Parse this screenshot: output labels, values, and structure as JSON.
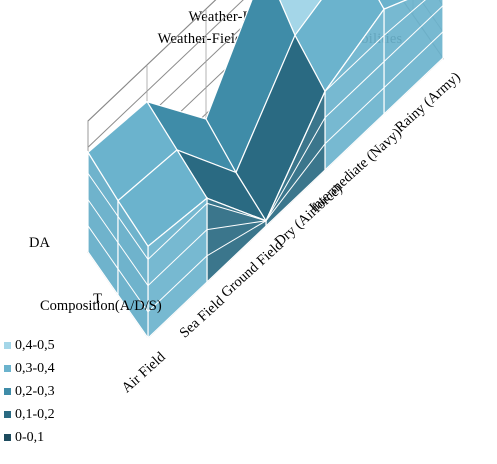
{
  "chart_data": {
    "type": "surface",
    "title": "Weather-Field-Enemy State vs",
    "subtitle": "Weather-Field-Enemy Joint Probabilities",
    "x_categories": [
      "Air Field",
      "Sea Field",
      "Ground Field",
      "Dry (Airforce)",
      "Intermediate (Navy)",
      "Rainy (Army)"
    ],
    "y_categories": [
      "Composition(A/D/S)",
      "T",
      "DA"
    ],
    "z_ticks": [
      "0",
      "0,1",
      "0,2",
      "0,3",
      "0,4",
      "0,5"
    ],
    "zlim": [
      0,
      0.5
    ],
    "values": [
      [
        0.35,
        0.32,
        0.02,
        0.3,
        0.4,
        0.28
      ],
      [
        0.36,
        0.34,
        0.04,
        0.35,
        0.44,
        0.3
      ],
      [
        0.38,
        0.36,
        0.08,
        0.45,
        0.47,
        0.32
      ]
    ],
    "legend": [
      {
        "label": "0,4-0,5",
        "color": "#a4d6e8"
      },
      {
        "label": "0,3-0,4",
        "color": "#6bb3cd"
      },
      {
        "label": "0,2-0,3",
        "color": "#3f8ca8"
      },
      {
        "label": "0,1-0,2",
        "color": "#2a6a82"
      },
      {
        "label": "0-0,1",
        "color": "#1d4b5e"
      }
    ],
    "legend_position": "bottom-left",
    "grid": true
  }
}
